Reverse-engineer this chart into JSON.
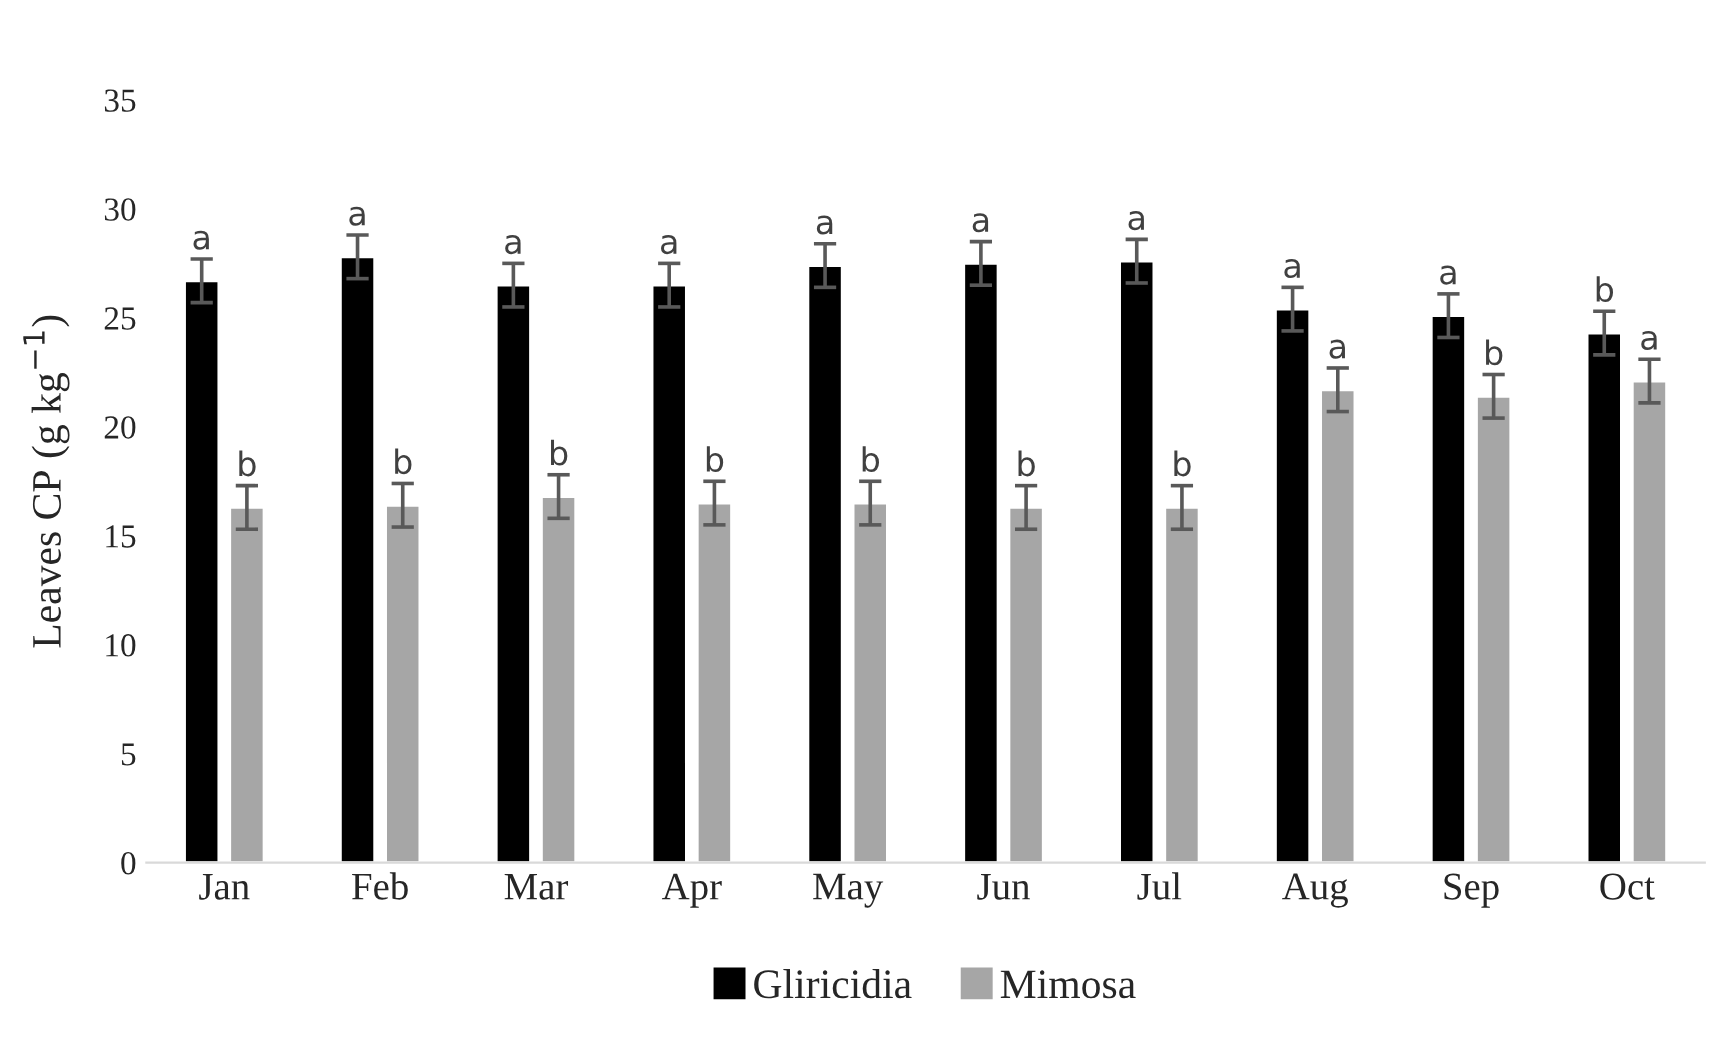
{
  "chart_data": {
    "type": "bar",
    "ylabel": "Leaves CP (g kg$^{−1}$)",
    "categories": [
      "Jan",
      "Feb",
      "Mar",
      "Apr",
      "May",
      "Jun",
      "Jul",
      "Aug",
      "Sep",
      "Oct"
    ],
    "series": [
      {
        "name": "Gliricidia",
        "color": "#000000",
        "values": [
          26.7,
          27.8,
          26.5,
          26.5,
          27.4,
          27.5,
          27.6,
          25.4,
          25.1,
          24.3
        ],
        "errors": [
          1,
          1,
          1,
          1,
          1,
          1,
          1,
          1,
          1,
          1
        ],
        "value_labels": [
          "a",
          "a",
          "a",
          "a",
          "a",
          "a",
          "a",
          "a",
          "a",
          "b"
        ]
      },
      {
        "name": "Mimosa",
        "color": "#a6a6a6",
        "values": [
          16.3,
          16.4,
          16.8,
          16.5,
          16.5,
          16.3,
          16.3,
          21.7,
          21.4,
          22.1
        ],
        "errors": [
          1,
          1,
          1,
          1,
          1,
          1,
          1,
          1,
          1,
          1
        ],
        "value_labels": [
          "b",
          "b",
          "b",
          "b",
          "b",
          "b",
          "b",
          "a",
          "b",
          "a"
        ]
      }
    ],
    "ylim": [
      0,
      35
    ],
    "yticks": [
      0,
      5,
      10,
      15,
      20,
      25,
      30,
      35
    ],
    "grid": false,
    "legend": "bottom"
  }
}
